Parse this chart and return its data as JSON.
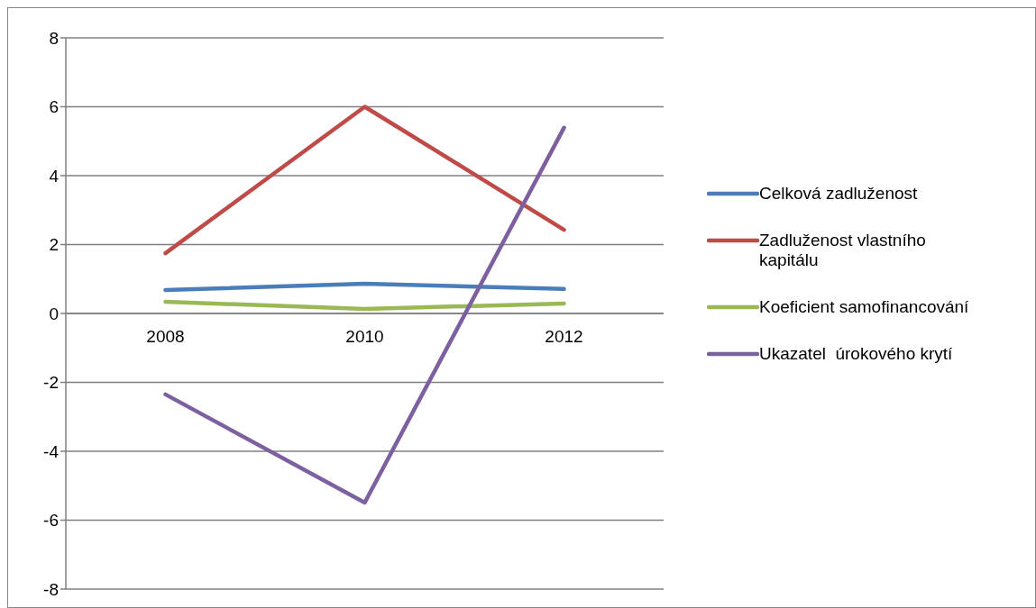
{
  "chart_data": {
    "type": "line",
    "categories": [
      "2008",
      "2010",
      "2012"
    ],
    "series": [
      {
        "name": "Celková zadluženost",
        "color": "#4a7ebb",
        "values": [
          0.68,
          0.86,
          0.71
        ]
      },
      {
        "name": "Zadluženost vlastního kapitálu",
        "color": "#be4b48",
        "values": [
          1.75,
          6.0,
          2.43
        ]
      },
      {
        "name": "Koeficient samofinancování",
        "color": "#98b954",
        "values": [
          0.34,
          0.13,
          0.29
        ]
      },
      {
        "name": "Ukazatel  úrokového krytí",
        "color": "#7d60a0",
        "values": [
          -2.35,
          -5.49,
          5.39
        ]
      }
    ],
    "ylim": [
      -8,
      8
    ],
    "yticks": [
      -8,
      -6,
      -4,
      -2,
      0,
      2,
      4,
      6,
      8
    ],
    "grid": "y",
    "legend": "right",
    "marker": "none",
    "line_style": "solid"
  }
}
